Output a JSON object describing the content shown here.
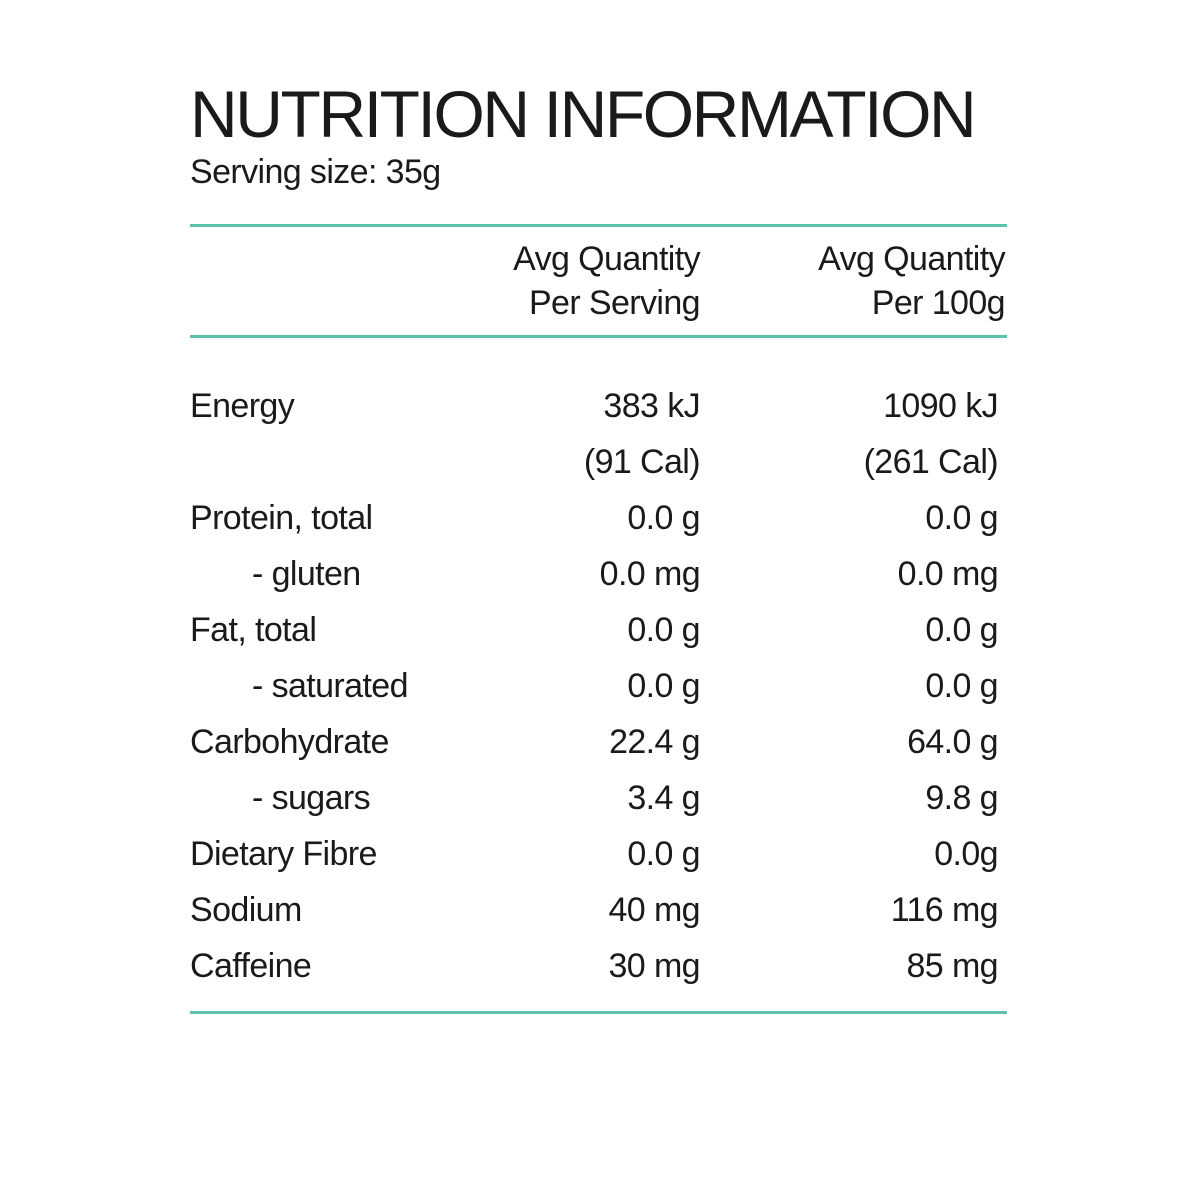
{
  "title": "NUTRITION INFORMATION",
  "serving_size": "Serving size: 35g",
  "columns": {
    "per_serving": [
      "Avg Quantity",
      "Per Serving"
    ],
    "per_100g": [
      "Avg Quantity",
      "Per 100g"
    ]
  },
  "rows": [
    {
      "label": "Energy",
      "per_serving": "383 kJ",
      "per_100g": "1090 kJ"
    },
    {
      "label": "",
      "per_serving": "(91 Cal)",
      "per_100g": "(261 Cal)"
    },
    {
      "label": "Protein, total",
      "per_serving": "0.0 g",
      "per_100g": "0.0 g"
    },
    {
      "label": "- gluten",
      "per_serving": "0.0 mg",
      "per_100g": "0.0 mg"
    },
    {
      "label": "Fat, total",
      "per_serving": "0.0 g",
      "per_100g": "0.0 g"
    },
    {
      "label": "- saturated",
      "per_serving": "0.0 g",
      "per_100g": "0.0 g"
    },
    {
      "label": "Carbohydrate",
      "per_serving": "22.4 g",
      "per_100g": "64.0 g"
    },
    {
      "label": "- sugars",
      "per_serving": "3.4 g",
      "per_100g": "9.8 g"
    },
    {
      "label": "Dietary Fibre",
      "per_serving": "0.0 g",
      "per_100g": "0.0g"
    },
    {
      "label": "Sodium",
      "per_serving": "40 mg",
      "per_100g": "116 mg"
    },
    {
      "label": "Caffeine",
      "per_serving": "30 mg",
      "per_100g": "85 mg"
    }
  ],
  "colors": {
    "rule": "#5cc2ae",
    "text": "#1a1a1a",
    "background": "#ffffff"
  }
}
